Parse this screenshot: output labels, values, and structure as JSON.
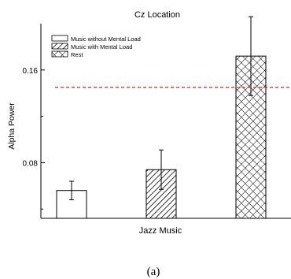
{
  "chart_data": {
    "type": "bar",
    "title": "Cz Location",
    "xlabel": "Jazz Music",
    "ylabel": "Alpha Power",
    "ylim": [
      0.032,
      0.2
    ],
    "yticks": [
      0.08,
      0.16
    ],
    "ytick_labels": [
      "0.08",
      "0.16"
    ],
    "legend_position": "top-left",
    "series": [
      {
        "name": "Music without Mental Load",
        "value": 0.056,
        "error": 0.008,
        "pattern": "none"
      },
      {
        "name": "Music with Mental Load",
        "value": 0.074,
        "error": 0.017,
        "pattern": "diagonal"
      },
      {
        "name": "Rest",
        "value": 0.172,
        "error": 0.034,
        "pattern": "crosshatch"
      }
    ],
    "reference_line": {
      "value": 0.145,
      "color": "#e0201c",
      "style": "dashed"
    },
    "caption": "(a)"
  }
}
